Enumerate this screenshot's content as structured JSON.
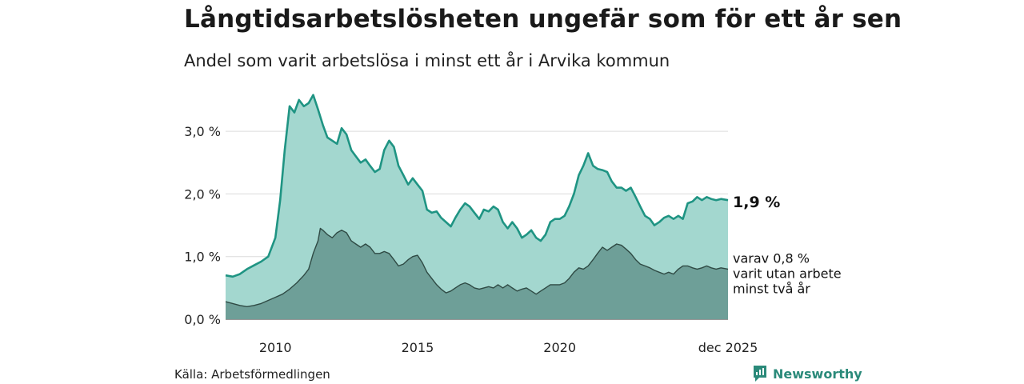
{
  "title": "Långtidsarbetslösheten ungefär som för ett år sen",
  "subtitle": "Andel som varit arbetslösa i minst ett år i Arvika kommun",
  "source": "Källa: Arbetsförmedlingen",
  "brand": "Newsworthy",
  "brand_icon": "newsworthy-logo-icon",
  "colors": {
    "total_line": "#1f9483",
    "total_fill": "#a3d7cf",
    "sub_line": "#2f4a44",
    "sub_fill": "#6e9f98",
    "grid": "#dcdcdc",
    "brand": "#2b8a7a"
  },
  "chart_data": {
    "type": "area",
    "x_start": "2008-04",
    "x_end": "2025-12",
    "x_ticks": [
      {
        "label": "2010",
        "x": 2010.0
      },
      {
        "label": "2015",
        "x": 2015.0
      },
      {
        "label": "2020",
        "x": 2020.0
      },
      {
        "label": "dec 2025",
        "x": 2025.917
      }
    ],
    "y_ticks": [
      {
        "label": "0,0 %",
        "value": 0
      },
      {
        "label": "1,0 %",
        "value": 1
      },
      {
        "label": "2,0 %",
        "value": 2
      },
      {
        "label": "3,0 %",
        "value": 3
      }
    ],
    "ylim": [
      0,
      3.6
    ],
    "grid": true,
    "series": [
      {
        "points": [
          [
            2008.25,
            0.7
          ],
          [
            2008.5,
            0.68
          ],
          [
            2008.75,
            0.72
          ],
          [
            2009.0,
            0.8
          ],
          [
            2009.25,
            0.86
          ],
          [
            2009.5,
            0.92
          ],
          [
            2009.75,
            1.0
          ],
          [
            2010.0,
            1.3
          ],
          [
            2010.17,
            1.9
          ],
          [
            2010.33,
            2.7
          ],
          [
            2010.5,
            3.4
          ],
          [
            2010.67,
            3.3
          ],
          [
            2010.83,
            3.5
          ],
          [
            2011.0,
            3.4
          ],
          [
            2011.17,
            3.45
          ],
          [
            2011.33,
            3.58
          ],
          [
            2011.5,
            3.35
          ],
          [
            2011.67,
            3.1
          ],
          [
            2011.83,
            2.9
          ],
          [
            2012.0,
            2.85
          ],
          [
            2012.17,
            2.8
          ],
          [
            2012.33,
            3.05
          ],
          [
            2012.5,
            2.95
          ],
          [
            2012.67,
            2.7
          ],
          [
            2012.83,
            2.6
          ],
          [
            2013.0,
            2.5
          ],
          [
            2013.17,
            2.55
          ],
          [
            2013.33,
            2.45
          ],
          [
            2013.5,
            2.35
          ],
          [
            2013.67,
            2.4
          ],
          [
            2013.83,
            2.7
          ],
          [
            2014.0,
            2.85
          ],
          [
            2014.17,
            2.75
          ],
          [
            2014.33,
            2.45
          ],
          [
            2014.5,
            2.3
          ],
          [
            2014.67,
            2.15
          ],
          [
            2014.83,
            2.25
          ],
          [
            2015.0,
            2.15
          ],
          [
            2015.17,
            2.05
          ],
          [
            2015.33,
            1.75
          ],
          [
            2015.5,
            1.7
          ],
          [
            2015.67,
            1.72
          ],
          [
            2015.83,
            1.62
          ],
          [
            2016.0,
            1.55
          ],
          [
            2016.17,
            1.48
          ],
          [
            2016.33,
            1.62
          ],
          [
            2016.5,
            1.75
          ],
          [
            2016.67,
            1.85
          ],
          [
            2016.83,
            1.8
          ],
          [
            2017.0,
            1.7
          ],
          [
            2017.17,
            1.6
          ],
          [
            2017.33,
            1.75
          ],
          [
            2017.5,
            1.72
          ],
          [
            2017.67,
            1.8
          ],
          [
            2017.83,
            1.75
          ],
          [
            2018.0,
            1.55
          ],
          [
            2018.17,
            1.45
          ],
          [
            2018.33,
            1.55
          ],
          [
            2018.5,
            1.45
          ],
          [
            2018.67,
            1.3
          ],
          [
            2018.83,
            1.35
          ],
          [
            2019.0,
            1.42
          ],
          [
            2019.17,
            1.3
          ],
          [
            2019.33,
            1.25
          ],
          [
            2019.5,
            1.35
          ],
          [
            2019.67,
            1.55
          ],
          [
            2019.83,
            1.6
          ],
          [
            2020.0,
            1.6
          ],
          [
            2020.17,
            1.65
          ],
          [
            2020.33,
            1.8
          ],
          [
            2020.5,
            2.0
          ],
          [
            2020.67,
            2.3
          ],
          [
            2020.83,
            2.45
          ],
          [
            2021.0,
            2.65
          ],
          [
            2021.17,
            2.45
          ],
          [
            2021.33,
            2.4
          ],
          [
            2021.5,
            2.38
          ],
          [
            2021.67,
            2.35
          ],
          [
            2021.83,
            2.2
          ],
          [
            2022.0,
            2.1
          ],
          [
            2022.17,
            2.1
          ],
          [
            2022.33,
            2.05
          ],
          [
            2022.5,
            2.1
          ],
          [
            2022.67,
            1.95
          ],
          [
            2022.83,
            1.8
          ],
          [
            2023.0,
            1.65
          ],
          [
            2023.17,
            1.6
          ],
          [
            2023.33,
            1.5
          ],
          [
            2023.5,
            1.55
          ],
          [
            2023.67,
            1.62
          ],
          [
            2023.83,
            1.65
          ],
          [
            2024.0,
            1.6
          ],
          [
            2024.17,
            1.65
          ],
          [
            2024.33,
            1.6
          ],
          [
            2024.5,
            1.85
          ],
          [
            2024.67,
            1.88
          ],
          [
            2024.83,
            1.95
          ],
          [
            2025.0,
            1.9
          ],
          [
            2025.17,
            1.95
          ],
          [
            2025.33,
            1.92
          ],
          [
            2025.5,
            1.9
          ],
          [
            2025.67,
            1.92
          ],
          [
            2025.917,
            1.9
          ]
        ],
        "end_label": "1,9 %"
      },
      {
        "points": [
          [
            2008.25,
            0.28
          ],
          [
            2008.5,
            0.25
          ],
          [
            2008.75,
            0.22
          ],
          [
            2009.0,
            0.2
          ],
          [
            2009.25,
            0.22
          ],
          [
            2009.5,
            0.25
          ],
          [
            2009.75,
            0.3
          ],
          [
            2010.0,
            0.35
          ],
          [
            2010.25,
            0.4
          ],
          [
            2010.5,
            0.48
          ],
          [
            2010.75,
            0.58
          ],
          [
            2011.0,
            0.7
          ],
          [
            2011.17,
            0.8
          ],
          [
            2011.33,
            1.05
          ],
          [
            2011.5,
            1.25
          ],
          [
            2011.58,
            1.45
          ],
          [
            2011.67,
            1.42
          ],
          [
            2011.83,
            1.35
          ],
          [
            2012.0,
            1.3
          ],
          [
            2012.17,
            1.38
          ],
          [
            2012.33,
            1.42
          ],
          [
            2012.5,
            1.38
          ],
          [
            2012.67,
            1.25
          ],
          [
            2012.83,
            1.2
          ],
          [
            2013.0,
            1.15
          ],
          [
            2013.17,
            1.2
          ],
          [
            2013.33,
            1.15
          ],
          [
            2013.5,
            1.05
          ],
          [
            2013.67,
            1.05
          ],
          [
            2013.83,
            1.08
          ],
          [
            2014.0,
            1.05
          ],
          [
            2014.17,
            0.95
          ],
          [
            2014.33,
            0.85
          ],
          [
            2014.5,
            0.88
          ],
          [
            2014.67,
            0.95
          ],
          [
            2014.83,
            1.0
          ],
          [
            2015.0,
            1.02
          ],
          [
            2015.17,
            0.9
          ],
          [
            2015.33,
            0.75
          ],
          [
            2015.5,
            0.65
          ],
          [
            2015.67,
            0.55
          ],
          [
            2015.83,
            0.48
          ],
          [
            2016.0,
            0.42
          ],
          [
            2016.17,
            0.45
          ],
          [
            2016.33,
            0.5
          ],
          [
            2016.5,
            0.55
          ],
          [
            2016.67,
            0.58
          ],
          [
            2016.83,
            0.55
          ],
          [
            2017.0,
            0.5
          ],
          [
            2017.17,
            0.48
          ],
          [
            2017.33,
            0.5
          ],
          [
            2017.5,
            0.52
          ],
          [
            2017.67,
            0.5
          ],
          [
            2017.83,
            0.55
          ],
          [
            2018.0,
            0.5
          ],
          [
            2018.17,
            0.55
          ],
          [
            2018.33,
            0.5
          ],
          [
            2018.5,
            0.45
          ],
          [
            2018.67,
            0.48
          ],
          [
            2018.83,
            0.5
          ],
          [
            2019.0,
            0.45
          ],
          [
            2019.17,
            0.4
          ],
          [
            2019.33,
            0.45
          ],
          [
            2019.5,
            0.5
          ],
          [
            2019.67,
            0.55
          ],
          [
            2019.83,
            0.55
          ],
          [
            2020.0,
            0.55
          ],
          [
            2020.17,
            0.58
          ],
          [
            2020.33,
            0.65
          ],
          [
            2020.5,
            0.75
          ],
          [
            2020.67,
            0.82
          ],
          [
            2020.83,
            0.8
          ],
          [
            2021.0,
            0.85
          ],
          [
            2021.17,
            0.95
          ],
          [
            2021.33,
            1.05
          ],
          [
            2021.5,
            1.15
          ],
          [
            2021.67,
            1.1
          ],
          [
            2021.83,
            1.15
          ],
          [
            2022.0,
            1.2
          ],
          [
            2022.17,
            1.18
          ],
          [
            2022.33,
            1.12
          ],
          [
            2022.5,
            1.05
          ],
          [
            2022.67,
            0.95
          ],
          [
            2022.83,
            0.88
          ],
          [
            2023.0,
            0.85
          ],
          [
            2023.17,
            0.82
          ],
          [
            2023.33,
            0.78
          ],
          [
            2023.5,
            0.75
          ],
          [
            2023.67,
            0.72
          ],
          [
            2023.83,
            0.75
          ],
          [
            2024.0,
            0.72
          ],
          [
            2024.17,
            0.8
          ],
          [
            2024.33,
            0.85
          ],
          [
            2024.5,
            0.85
          ],
          [
            2024.67,
            0.82
          ],
          [
            2024.83,
            0.8
          ],
          [
            2025.0,
            0.82
          ],
          [
            2025.17,
            0.85
          ],
          [
            2025.33,
            0.82
          ],
          [
            2025.5,
            0.8
          ],
          [
            2025.67,
            0.82
          ],
          [
            2025.917,
            0.8
          ]
        ],
        "end_label_lines": [
          "varav 0,8 %",
          "varit utan arbete",
          "minst två år"
        ]
      }
    ]
  }
}
